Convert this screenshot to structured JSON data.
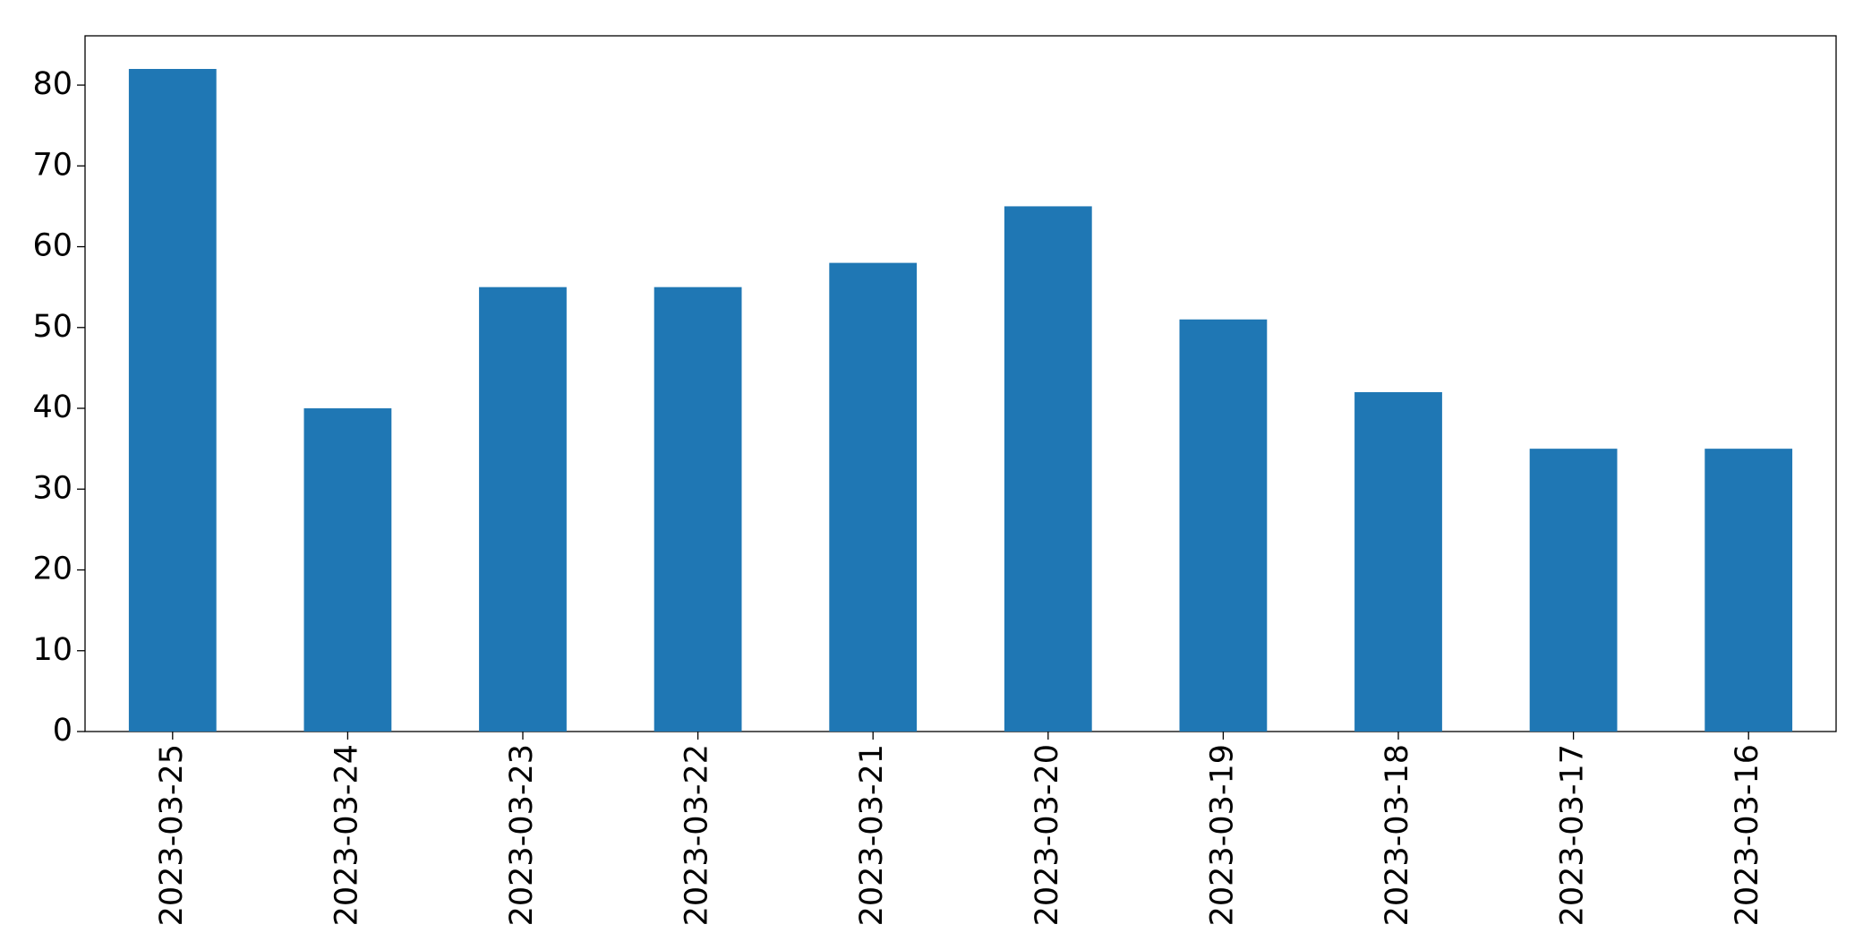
{
  "chart_data": {
    "type": "bar",
    "categories": [
      "2023-03-25",
      "2023-03-24",
      "2023-03-23",
      "2023-03-22",
      "2023-03-21",
      "2023-03-20",
      "2023-03-19",
      "2023-03-18",
      "2023-03-17",
      "2023-03-16"
    ],
    "values": [
      82,
      40,
      55,
      55,
      58,
      65,
      51,
      42,
      35,
      35
    ],
    "color": "#1f77b4",
    "ylim": [
      0,
      86.1
    ],
    "yticks": [
      0,
      10,
      20,
      30,
      40,
      50,
      60,
      70,
      80
    ],
    "grid": false
  }
}
